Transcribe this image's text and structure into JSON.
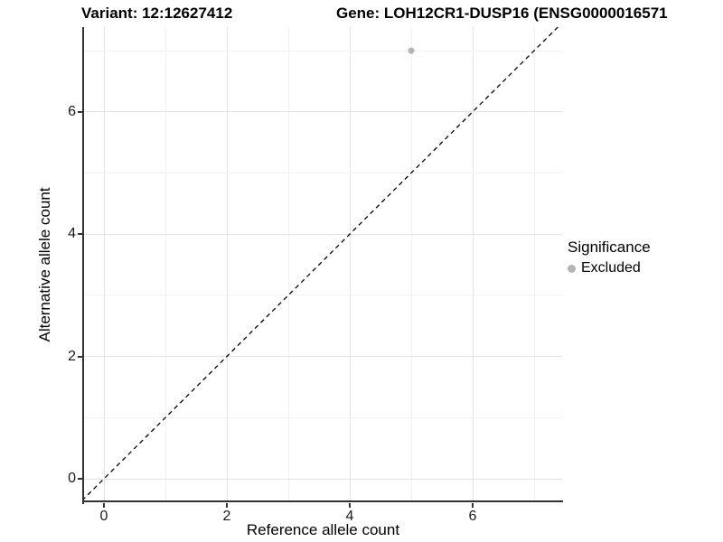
{
  "header": {
    "variant_title": "Variant: 12:12627412",
    "gene_title": "Gene: LOH12CR1-DUSP16 (ENSG0000016571"
  },
  "legend": {
    "title": "Significance",
    "items": [
      {
        "label": "Excluded",
        "color": "#b4b4b4"
      }
    ]
  },
  "chart_data": {
    "type": "scatter",
    "title": "Variant: 12:12627412   Gene: LOH12CR1-DUSP16 (ENSG0000016571",
    "xlabel": "Reference allele count",
    "ylabel": "Alternative allele count",
    "xlim": [
      -0.35,
      7.45
    ],
    "ylim": [
      -0.4,
      7.4
    ],
    "x_ticks": [
      0,
      2,
      4,
      6
    ],
    "y_ticks": [
      0,
      2,
      4,
      6
    ],
    "x_gridlines": [
      0,
      1,
      2,
      3,
      4,
      5,
      6,
      7
    ],
    "y_gridlines": [
      0,
      1,
      2,
      3,
      4,
      5,
      6,
      7
    ],
    "grid": true,
    "legend_position": "right",
    "series": [
      {
        "name": "Excluded",
        "color": "#b4b4b4",
        "points": [
          {
            "x": 5,
            "y": 7
          }
        ]
      }
    ],
    "reference_line": {
      "type": "identity",
      "slope": 1,
      "intercept": 0,
      "style": "dashed",
      "color": "#000000"
    }
  },
  "colors": {
    "background": "#ffffff",
    "axis_line": "#333333",
    "grid_major": "#e3e3e3",
    "grid_minor": "#f1f1f1",
    "tick_label": "#1a1a1a",
    "point": "#b4b4b4"
  }
}
